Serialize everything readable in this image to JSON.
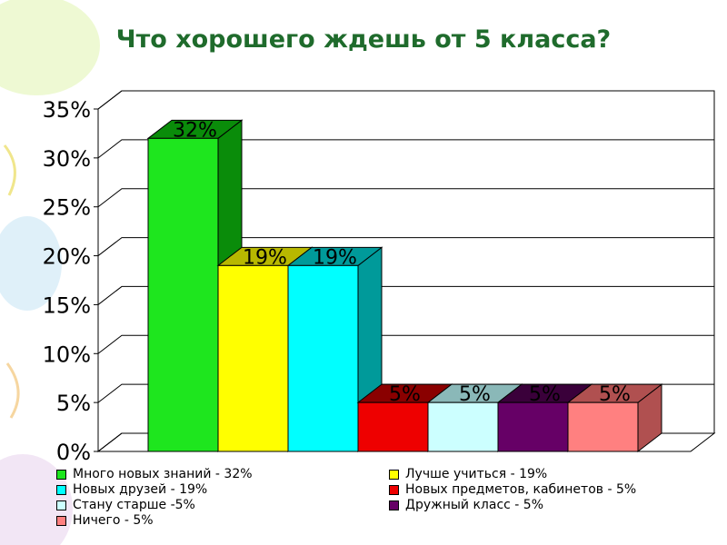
{
  "title": "Что хорошего ждешь от 5 класса?",
  "chart_data": {
    "type": "bar",
    "categories": [
      "Много новых знаний - 32%",
      "Лучше учиться - 19%",
      "Новых друзей - 19%",
      "Новых предметов, кабинетов - 5%",
      "Стану старше -5%",
      "Дружный класс - 5%",
      "Ничего - 5%"
    ],
    "values": [
      32,
      19,
      19,
      5,
      5,
      5,
      5
    ],
    "data_labels": [
      "32%",
      "19%",
      "19%",
      "5%",
      "5%",
      "5%",
      "5%"
    ],
    "colors": [
      "#1ee61e",
      "#ffff00",
      "#00ffff",
      "#ee0000",
      "#ccffff",
      "#660066",
      "#ff8080"
    ],
    "side_colors": [
      "#0a8c0a",
      "#b8b800",
      "#009a9a",
      "#8a0000",
      "#8ab8b8",
      "#3a003a",
      "#b05050"
    ],
    "y_ticks": [
      "0%",
      "5%",
      "10%",
      "15%",
      "20%",
      "25%",
      "30%",
      "35%"
    ],
    "ylim": [
      0,
      35
    ],
    "grid": true,
    "legend_position": "bottom",
    "legend": [
      "Много новых знаний - 32%",
      "Лучше учиться - 19%",
      "Новых друзей - 19%",
      "Новых предметов, кабинетов - 5%",
      "Стану старше -5%",
      "Дружный класс - 5%",
      "Ничего - 5%"
    ]
  }
}
